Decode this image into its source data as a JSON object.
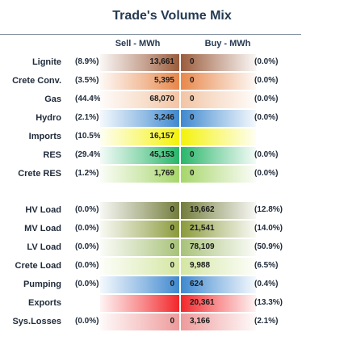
{
  "chart_data": {
    "type": "table",
    "title": "Trade's Volume Mix",
    "columns": {
      "sell": "Sell - MWh",
      "buy": "Buy - MWh"
    },
    "rows": [
      {
        "label": "Lignite",
        "sell_pct": "(8.9%)",
        "sell": "13,661",
        "buy": "0",
        "buy_pct": "(0.0%)",
        "sell_color": "#9b5c3c",
        "buy_color": "#9b5c3c"
      },
      {
        "label": "Crete Conv.",
        "sell_pct": "(3.5%)",
        "sell": "5,395",
        "buy": "0",
        "buy_pct": "(0.0%)",
        "sell_color": "#e8874a",
        "buy_color": "#e8874a"
      },
      {
        "label": "Gas",
        "sell_pct": "(44.4%)",
        "sell": "68,070",
        "buy": "0",
        "buy_pct": "(0.0%)",
        "sell_color": "#f3c4a4",
        "buy_color": "#f3c4a4"
      },
      {
        "label": "Hydro",
        "sell_pct": "(2.1%)",
        "sell": "3,246",
        "buy": "0",
        "buy_pct": "(0.0%)",
        "sell_color": "#3f88cf",
        "buy_color": "#3f88cf"
      },
      {
        "label": "Imports",
        "sell_pct": "(10.5%)",
        "sell": "16,157",
        "buy": "",
        "buy_pct": "",
        "sell_color": "#f4f20a",
        "buy_color": "#f4f20a"
      },
      {
        "label": "RES",
        "sell_pct": "(29.4%)",
        "sell": "45,153",
        "buy": "0",
        "buy_pct": "(0.0%)",
        "sell_color": "#29b66a",
        "buy_color": "#29b66a"
      },
      {
        "label": "Crete RES",
        "sell_pct": "(1.2%)",
        "sell": "1,769",
        "buy": "0",
        "buy_pct": "(0.0%)",
        "sell_color": "#a6d66a",
        "buy_color": "#a6d66a"
      },
      {
        "label": "HV Load",
        "sell_pct": "(0.0%)",
        "sell": "0",
        "buy": "19,662",
        "buy_pct": "(12.8%)",
        "sell_color": "#737c3c",
        "buy_color": "#737c3c"
      },
      {
        "label": "MV Load",
        "sell_pct": "(0.0%)",
        "sell": "0",
        "buy": "21,541",
        "buy_pct": "(14.0%)",
        "sell_color": "#8a9a3a",
        "buy_color": "#8a9a3a"
      },
      {
        "label": "LV Load",
        "sell_pct": "(0.0%)",
        "sell": "0",
        "buy": "78,109",
        "buy_pct": "(50.9%)",
        "sell_color": "#a8c278",
        "buy_color": "#a8c278"
      },
      {
        "label": "Crete Load",
        "sell_pct": "(0.0%)",
        "sell": "0",
        "buy": "9,988",
        "buy_pct": "(6.5%)",
        "sell_color": "#d4e6a2",
        "buy_color": "#d4e6a2"
      },
      {
        "label": "Pumping",
        "sell_pct": "(0.0%)",
        "sell": "0",
        "buy": "624",
        "buy_pct": "(0.4%)",
        "sell_color": "#3f88cf",
        "buy_color": "#3f88cf"
      },
      {
        "label": "Exports",
        "sell_pct": "",
        "sell": "",
        "buy": "20,361",
        "buy_pct": "(13.3%)",
        "sell_color": "#f2262a",
        "buy_color": "#f2262a"
      },
      {
        "label": "Sys.Losses",
        "sell_pct": "(0.0%)",
        "sell": "0",
        "buy": "3,166",
        "buy_pct": "(2.1%)",
        "sell_color": "#ee9a9a",
        "buy_color": "#ee9a9a"
      }
    ]
  }
}
